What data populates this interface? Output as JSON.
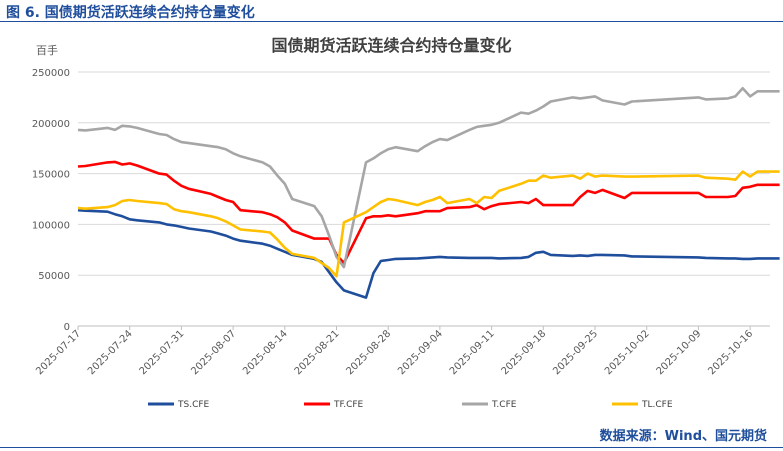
{
  "caption": "图 6. 国债期货活跃连续合约持仓量变化",
  "source": "数据来源：Wind、国元期货",
  "chart_data": {
    "type": "line",
    "title": "国债期货活跃连续合约持仓量变化",
    "unit": "百手",
    "ylim": [
      0,
      250000
    ],
    "yticks": [
      "0",
      "50000",
      "100000",
      "150000",
      "200000",
      "250000"
    ],
    "xticks": [
      "2025-07-17",
      "2025-07-24",
      "2025-07-31",
      "2025-08-07",
      "2025-08-14",
      "2025-08-21",
      "2025-08-28",
      "2025-09-04",
      "2025-09-11",
      "2025-09-18",
      "2025-09-25",
      "2025-10-02",
      "2025-10-09",
      "2025-10-16"
    ],
    "grid": true,
    "legend": "bottom",
    "series": [
      {
        "name": "TS.CFE",
        "color": "#1f4e9c",
        "points": [
          [
            "2025-07-17",
            114000
          ],
          [
            "2025-07-18",
            113500
          ],
          [
            "2025-07-21",
            112500
          ],
          [
            "2025-07-22",
            110000
          ],
          [
            "2025-07-23",
            108000
          ],
          [
            "2025-07-24",
            105000
          ],
          [
            "2025-07-25",
            104000
          ],
          [
            "2025-07-28",
            102000
          ],
          [
            "2025-07-29",
            100000
          ],
          [
            "2025-07-30",
            99000
          ],
          [
            "2025-07-31",
            97500
          ],
          [
            "2025-08-01",
            96000
          ],
          [
            "2025-08-04",
            93000
          ],
          [
            "2025-08-05",
            91000
          ],
          [
            "2025-08-06",
            89000
          ],
          [
            "2025-08-07",
            86000
          ],
          [
            "2025-08-08",
            84000
          ],
          [
            "2025-08-11",
            81000
          ],
          [
            "2025-08-12",
            79000
          ],
          [
            "2025-08-13",
            76000
          ],
          [
            "2025-08-14",
            73000
          ],
          [
            "2025-08-15",
            70000
          ],
          [
            "2025-08-18",
            66000
          ],
          [
            "2025-08-19",
            63000
          ],
          [
            "2025-08-20",
            53000
          ],
          [
            "2025-08-21",
            43000
          ],
          [
            "2025-08-22",
            35000
          ],
          [
            "2025-08-25",
            28000
          ],
          [
            "2025-08-26",
            52000
          ],
          [
            "2025-08-27",
            64000
          ],
          [
            "2025-08-28",
            65000
          ],
          [
            "2025-08-29",
            66000
          ],
          [
            "2025-09-01",
            66500
          ],
          [
            "2025-09-02",
            67000
          ],
          [
            "2025-09-03",
            67500
          ],
          [
            "2025-09-04",
            68000
          ],
          [
            "2025-09-05",
            67500
          ],
          [
            "2025-09-08",
            67000
          ],
          [
            "2025-09-09",
            67000
          ],
          [
            "2025-09-10",
            67000
          ],
          [
            "2025-09-11",
            67000
          ],
          [
            "2025-09-12",
            66500
          ],
          [
            "2025-09-15",
            67000
          ],
          [
            "2025-09-16",
            68000
          ],
          [
            "2025-09-17",
            72000
          ],
          [
            "2025-09-18",
            73000
          ],
          [
            "2025-09-19",
            70000
          ],
          [
            "2025-09-22",
            69000
          ],
          [
            "2025-09-23",
            69500
          ],
          [
            "2025-09-24",
            69000
          ],
          [
            "2025-09-25",
            70000
          ],
          [
            "2025-09-26",
            70000
          ],
          [
            "2025-09-29",
            69500
          ],
          [
            "2025-09-30",
            68500
          ],
          [
            "2025-10-09",
            67500
          ],
          [
            "2025-10-10",
            67000
          ],
          [
            "2025-10-13",
            66500
          ],
          [
            "2025-10-14",
            66500
          ],
          [
            "2025-10-15",
            66000
          ],
          [
            "2025-10-16",
            66000
          ],
          [
            "2025-10-17",
            66500
          ],
          [
            "2025-10-20",
            66500
          ]
        ]
      },
      {
        "name": "TF.CFE",
        "color": "#ff0000",
        "points": [
          [
            "2025-07-17",
            157000
          ],
          [
            "2025-07-18",
            157500
          ],
          [
            "2025-07-21",
            161000
          ],
          [
            "2025-07-22",
            161500
          ],
          [
            "2025-07-23",
            159000
          ],
          [
            "2025-07-24",
            160000
          ],
          [
            "2025-07-25",
            158000
          ],
          [
            "2025-07-28",
            150000
          ],
          [
            "2025-07-29",
            149000
          ],
          [
            "2025-07-30",
            143000
          ],
          [
            "2025-07-31",
            138000
          ],
          [
            "2025-08-01",
            135000
          ],
          [
            "2025-08-04",
            130000
          ],
          [
            "2025-08-05",
            127000
          ],
          [
            "2025-08-06",
            124000
          ],
          [
            "2025-08-07",
            122000
          ],
          [
            "2025-08-08",
            114000
          ],
          [
            "2025-08-11",
            112000
          ],
          [
            "2025-08-12",
            110000
          ],
          [
            "2025-08-13",
            107000
          ],
          [
            "2025-08-14",
            102000
          ],
          [
            "2025-08-15",
            94000
          ],
          [
            "2025-08-18",
            86000
          ],
          [
            "2025-08-19",
            86000
          ],
          [
            "2025-08-20",
            86000
          ],
          [
            "2025-08-21",
            70000
          ],
          [
            "2025-08-22",
            62000
          ],
          [
            "2025-08-25",
            106000
          ],
          [
            "2025-08-26",
            108000
          ],
          [
            "2025-08-27",
            108000
          ],
          [
            "2025-08-28",
            109000
          ],
          [
            "2025-08-29",
            108000
          ],
          [
            "2025-09-01",
            111000
          ],
          [
            "2025-09-02",
            113000
          ],
          [
            "2025-09-03",
            113000
          ],
          [
            "2025-09-04",
            113000
          ],
          [
            "2025-09-05",
            116000
          ],
          [
            "2025-09-08",
            117000
          ],
          [
            "2025-09-09",
            119000
          ],
          [
            "2025-09-10",
            115000
          ],
          [
            "2025-09-11",
            118000
          ],
          [
            "2025-09-12",
            120000
          ],
          [
            "2025-09-15",
            122000
          ],
          [
            "2025-09-16",
            121000
          ],
          [
            "2025-09-17",
            125000
          ],
          [
            "2025-09-18",
            119000
          ],
          [
            "2025-09-19",
            119000
          ],
          [
            "2025-09-22",
            119000
          ],
          [
            "2025-09-23",
            127000
          ],
          [
            "2025-09-24",
            133000
          ],
          [
            "2025-09-25",
            131000
          ],
          [
            "2025-09-26",
            134000
          ],
          [
            "2025-09-29",
            126000
          ],
          [
            "2025-09-30",
            131000
          ],
          [
            "2025-10-09",
            131000
          ],
          [
            "2025-10-10",
            127000
          ],
          [
            "2025-10-13",
            127000
          ],
          [
            "2025-10-14",
            128000
          ],
          [
            "2025-10-15",
            136000
          ],
          [
            "2025-10-16",
            137000
          ],
          [
            "2025-10-17",
            139000
          ],
          [
            "2025-10-20",
            139000
          ]
        ]
      },
      {
        "name": "T.CFE",
        "color": "#a6a6a6",
        "points": [
          [
            "2025-07-17",
            193000
          ],
          [
            "2025-07-18",
            192500
          ],
          [
            "2025-07-21",
            195000
          ],
          [
            "2025-07-22",
            193000
          ],
          [
            "2025-07-23",
            197000
          ],
          [
            "2025-07-24",
            196500
          ],
          [
            "2025-07-25",
            195000
          ],
          [
            "2025-07-28",
            189000
          ],
          [
            "2025-07-29",
            188000
          ],
          [
            "2025-07-30",
            184000
          ],
          [
            "2025-07-31",
            181000
          ],
          [
            "2025-08-01",
            180000
          ],
          [
            "2025-08-04",
            177000
          ],
          [
            "2025-08-05",
            176000
          ],
          [
            "2025-08-06",
            174000
          ],
          [
            "2025-08-07",
            170000
          ],
          [
            "2025-08-08",
            167000
          ],
          [
            "2025-08-11",
            161000
          ],
          [
            "2025-08-12",
            157000
          ],
          [
            "2025-08-13",
            148000
          ],
          [
            "2025-08-14",
            140000
          ],
          [
            "2025-08-15",
            125000
          ],
          [
            "2025-08-18",
            118000
          ],
          [
            "2025-08-19",
            108000
          ],
          [
            "2025-08-20",
            89000
          ],
          [
            "2025-08-21",
            68000
          ],
          [
            "2025-08-22",
            58000
          ],
          [
            "2025-08-25",
            161000
          ],
          [
            "2025-08-26",
            165000
          ],
          [
            "2025-08-27",
            170000
          ],
          [
            "2025-08-28",
            174000
          ],
          [
            "2025-08-29",
            176000
          ],
          [
            "2025-09-01",
            172000
          ],
          [
            "2025-09-02",
            177000
          ],
          [
            "2025-09-03",
            181000
          ],
          [
            "2025-09-04",
            184000
          ],
          [
            "2025-09-05",
            183000
          ],
          [
            "2025-09-08",
            193000
          ],
          [
            "2025-09-09",
            196000
          ],
          [
            "2025-09-10",
            197000
          ],
          [
            "2025-09-11",
            198000
          ],
          [
            "2025-09-12",
            200000
          ],
          [
            "2025-09-15",
            210000
          ],
          [
            "2025-09-16",
            209000
          ],
          [
            "2025-09-17",
            212000
          ],
          [
            "2025-09-18",
            216000
          ],
          [
            "2025-09-19",
            221000
          ],
          [
            "2025-09-22",
            225000
          ],
          [
            "2025-09-23",
            224000
          ],
          [
            "2025-09-24",
            225000
          ],
          [
            "2025-09-25",
            226000
          ],
          [
            "2025-09-26",
            222000
          ],
          [
            "2025-09-29",
            218000
          ],
          [
            "2025-09-30",
            221000
          ],
          [
            "2025-10-09",
            225000
          ],
          [
            "2025-10-10",
            223000
          ],
          [
            "2025-10-13",
            224000
          ],
          [
            "2025-10-14",
            226000
          ],
          [
            "2025-10-15",
            234000
          ],
          [
            "2025-10-16",
            226000
          ],
          [
            "2025-10-17",
            231000
          ],
          [
            "2025-10-20",
            231000
          ]
        ]
      },
      {
        "name": "TL.CFE",
        "color": "#ffc000",
        "points": [
          [
            "2025-07-17",
            116000
          ],
          [
            "2025-07-18",
            115500
          ],
          [
            "2025-07-21",
            117000
          ],
          [
            "2025-07-22",
            119000
          ],
          [
            "2025-07-23",
            123000
          ],
          [
            "2025-07-24",
            124000
          ],
          [
            "2025-07-25",
            123000
          ],
          [
            "2025-07-28",
            121000
          ],
          [
            "2025-07-29",
            120000
          ],
          [
            "2025-07-30",
            115000
          ],
          [
            "2025-07-31",
            113000
          ],
          [
            "2025-08-01",
            112000
          ],
          [
            "2025-08-04",
            108000
          ],
          [
            "2025-08-05",
            106000
          ],
          [
            "2025-08-06",
            103000
          ],
          [
            "2025-08-07",
            99000
          ],
          [
            "2025-08-08",
            95000
          ],
          [
            "2025-08-11",
            93000
          ],
          [
            "2025-08-12",
            92000
          ],
          [
            "2025-08-13",
            85000
          ],
          [
            "2025-08-14",
            77000
          ],
          [
            "2025-08-15",
            71000
          ],
          [
            "2025-08-18",
            67000
          ],
          [
            "2025-08-19",
            62000
          ],
          [
            "2025-08-20",
            57000
          ],
          [
            "2025-08-21",
            49000
          ],
          [
            "2025-08-22",
            102000
          ],
          [
            "2025-08-25",
            112000
          ],
          [
            "2025-08-26",
            117000
          ],
          [
            "2025-08-27",
            122000
          ],
          [
            "2025-08-28",
            125000
          ],
          [
            "2025-08-29",
            124000
          ],
          [
            "2025-09-01",
            119000
          ],
          [
            "2025-09-02",
            122000
          ],
          [
            "2025-09-03",
            124000
          ],
          [
            "2025-09-04",
            127000
          ],
          [
            "2025-09-05",
            121000
          ],
          [
            "2025-09-08",
            125000
          ],
          [
            "2025-09-09",
            121000
          ],
          [
            "2025-09-10",
            127000
          ],
          [
            "2025-09-11",
            126000
          ],
          [
            "2025-09-12",
            133000
          ],
          [
            "2025-09-15",
            140000
          ],
          [
            "2025-09-16",
            143000
          ],
          [
            "2025-09-17",
            143000
          ],
          [
            "2025-09-18",
            148000
          ],
          [
            "2025-09-19",
            146000
          ],
          [
            "2025-09-22",
            148000
          ],
          [
            "2025-09-23",
            145000
          ],
          [
            "2025-09-24",
            150000
          ],
          [
            "2025-09-25",
            147000
          ],
          [
            "2025-09-26",
            148000
          ],
          [
            "2025-09-29",
            147000
          ],
          [
            "2025-09-30",
            147000
          ],
          [
            "2025-10-09",
            148000
          ],
          [
            "2025-10-10",
            146000
          ],
          [
            "2025-10-13",
            145000
          ],
          [
            "2025-10-14",
            144000
          ],
          [
            "2025-10-15",
            152000
          ],
          [
            "2025-10-16",
            147000
          ],
          [
            "2025-10-17",
            152000
          ],
          [
            "2025-10-20",
            152000
          ]
        ]
      }
    ]
  }
}
